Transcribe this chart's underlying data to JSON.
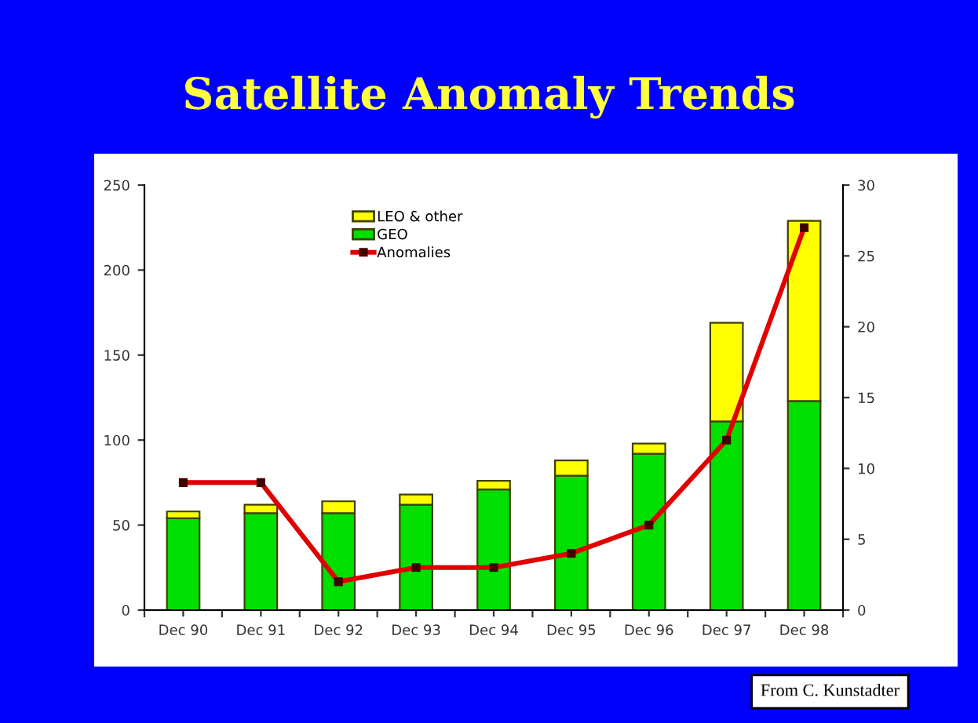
{
  "chart_data": {
    "type": "bar",
    "title": "Satellite Anomaly Trends",
    "categories": [
      "Dec 90",
      "Dec 91",
      "Dec 92",
      "Dec 93",
      "Dec 94",
      "Dec 95",
      "Dec 96",
      "Dec 97",
      "Dec 98"
    ],
    "stacked": true,
    "series": [
      {
        "name": "GEO",
        "color": "#00e000",
        "values": [
          54,
          57,
          57,
          62,
          71,
          79,
          92,
          111,
          123
        ]
      },
      {
        "name": "LEO & other",
        "color": "#ffff00",
        "values": [
          4,
          5,
          7,
          6,
          5,
          9,
          6,
          58,
          106
        ]
      },
      {
        "name": "Anomalies",
        "type": "line",
        "axis": "y2",
        "color": "#e00000",
        "marker": "square",
        "values": [
          9,
          9,
          2,
          3,
          3,
          4,
          6,
          12,
          27
        ]
      }
    ],
    "ylim": [
      0,
      250
    ],
    "yticks": [
      0,
      50,
      100,
      150,
      200,
      250
    ],
    "y2lim": [
      0,
      30
    ],
    "y2ticks": [
      0,
      5,
      10,
      15,
      20,
      25,
      30
    ],
    "grid": false,
    "legend": "top left",
    "annotations": [
      "From C. Kunstadter"
    ]
  }
}
